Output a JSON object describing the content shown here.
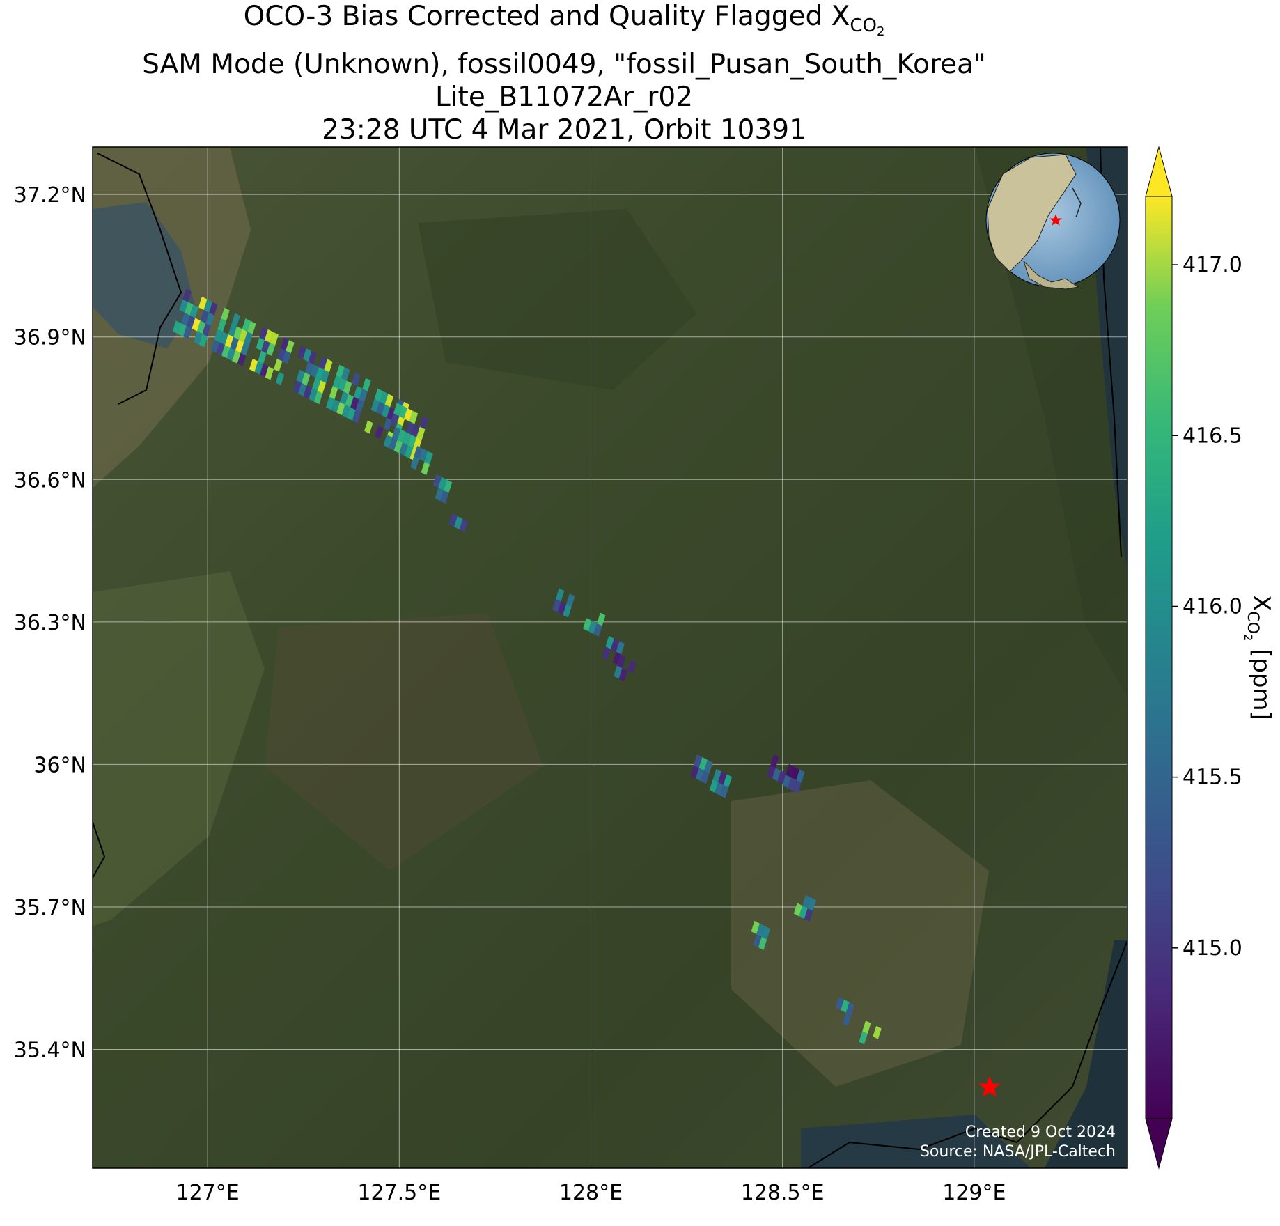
{
  "title": {
    "line1_text": "OCO-3 Bias Corrected and Quality Flagged X",
    "line1_sub": "CO",
    "line1_subsub": "2",
    "line2": "SAM Mode (Unknown), fossil0049, \"fossil_Pusan_South_Korea\"",
    "line3": "Lite_B11072Ar_r02",
    "line4": "23:28 UTC 4 Mar 2021, Orbit 10391"
  },
  "map": {
    "lon_range": [
      126.7,
      129.4
    ],
    "lat_range": [
      35.15,
      37.3
    ],
    "x_ticks": [
      127.0,
      127.5,
      128.0,
      128.5,
      129.0
    ],
    "x_tick_labels": [
      "127°E",
      "127.5°E",
      "128°E",
      "128.5°E",
      "129°E"
    ],
    "y_ticks": [
      37.2,
      36.9,
      36.6,
      36.3,
      36.0,
      35.7,
      35.4
    ],
    "y_tick_labels": [
      "37.2°N",
      "36.9°N",
      "36.6°N",
      "36.3°N",
      "36°N",
      "35.7°N",
      "35.4°N"
    ],
    "target_site": {
      "lon": 129.04,
      "lat": 35.32,
      "marker": "red-star",
      "color": "#ff0000"
    },
    "inset_globe": {
      "center_lon": 128.5,
      "center_lat": 36,
      "marker": "red-star"
    }
  },
  "colorbar": {
    "colormap": "viridis",
    "range": [
      414.5,
      417.2
    ],
    "ticks": [
      415.0,
      415.5,
      416.0,
      416.5,
      417.0
    ],
    "tick_labels": [
      "415.0",
      "415.5",
      "416.0",
      "416.5",
      "417.0"
    ],
    "label_main": "X",
    "label_sub": "CO",
    "label_subsub": "2",
    "label_unit": " [ppm]",
    "extend": "both"
  },
  "credit": {
    "created": "Created 9 Oct 2024",
    "source": "Source: NASA/JPL-Caltech"
  },
  "chart_data": {
    "type": "scatter",
    "xlabel": "",
    "ylabel": "",
    "xlim": [
      126.7,
      129.4
    ],
    "ylim": [
      35.15,
      37.3
    ],
    "footprint_groups": [
      {
        "lon": [
          126.95,
          127.05,
          127.15,
          127.25,
          127.35,
          127.45,
          127.5
        ],
        "lat": [
          36.94,
          36.9,
          36.86,
          36.82,
          36.78,
          36.73,
          36.7
        ],
        "xco2_range": [
          414.7,
          417.2
        ]
      },
      {
        "lon": [
          127.55,
          127.6,
          127.65
        ],
        "lat": [
          36.64,
          36.58,
          36.52
        ],
        "xco2_range": [
          414.8,
          417.0
        ]
      },
      {
        "lon": [
          127.92
        ],
        "lat": [
          36.34
        ],
        "xco2_range": [
          414.6,
          415.8
        ]
      },
      {
        "lon": [
          128.0,
          128.05,
          128.08
        ],
        "lat": [
          36.3,
          36.24,
          36.2
        ],
        "xco2_range": [
          414.6,
          416.5
        ]
      },
      {
        "lon": [
          128.28,
          128.33
        ],
        "lat": [
          35.99,
          35.96
        ],
        "xco2_range": [
          414.6,
          416.4
        ]
      },
      {
        "lon": [
          128.48,
          128.52
        ],
        "lat": [
          35.99,
          35.97
        ],
        "xco2_range": [
          414.6,
          415.6
        ]
      },
      {
        "lon": [
          128.43,
          128.55
        ],
        "lat": [
          35.64,
          35.7
        ],
        "xco2_range": [
          414.7,
          417.1
        ]
      },
      {
        "lon": [
          128.65,
          128.72
        ],
        "lat": [
          35.48,
          35.43
        ],
        "xco2_range": [
          414.7,
          417.1
        ]
      }
    ]
  }
}
